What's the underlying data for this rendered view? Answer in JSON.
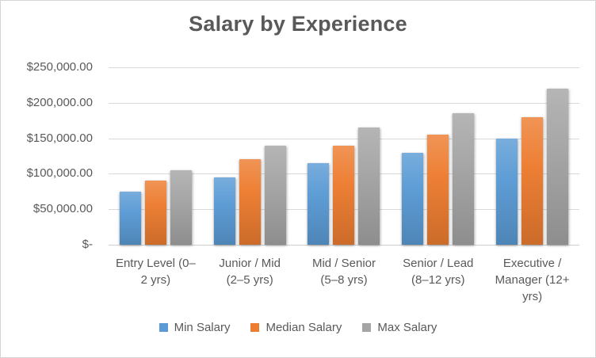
{
  "chart_data": {
    "type": "bar",
    "title": "Salary by Experience",
    "categories": [
      "Entry Level (0–2 yrs)",
      "Junior / Mid (2–5 yrs)",
      "Mid / Senior (5–8 yrs)",
      "Senior / Lead (8–12 yrs)",
      "Executive / Manager (12+ yrs)"
    ],
    "category_label_lines": [
      [
        "Entry Level (0–",
        "2 yrs)"
      ],
      [
        "Junior / Mid",
        "(2–5 yrs)"
      ],
      [
        "Mid / Senior",
        "(5–8 yrs)"
      ],
      [
        "Senior / Lead",
        "(8–12 yrs)"
      ],
      [
        "Executive /",
        "Manager (12+",
        "yrs)"
      ]
    ],
    "series": [
      {
        "name": "Min Salary",
        "color": "#5B9BD5",
        "values": [
          75000,
          95000,
          115000,
          130000,
          150000
        ]
      },
      {
        "name": "Median Salary",
        "color": "#ED7D31",
        "values": [
          90000,
          120000,
          140000,
          155000,
          180000
        ]
      },
      {
        "name": "Max Salary",
        "color": "#A5A5A5",
        "values": [
          105000,
          140000,
          165000,
          185000,
          220000
        ]
      }
    ],
    "xlabel": "",
    "ylabel": "",
    "ylim": [
      0,
      250000
    ],
    "y_tick_interval": 50000,
    "y_tick_labels": [
      "$-",
      "$50,000.00",
      "$100,000.00",
      "$150,000.00",
      "$200,000.00",
      "$250,000.00"
    ],
    "grid": true,
    "legend_position": "bottom",
    "text_color": "#595959",
    "gridline_color": "#D9D9D9"
  }
}
